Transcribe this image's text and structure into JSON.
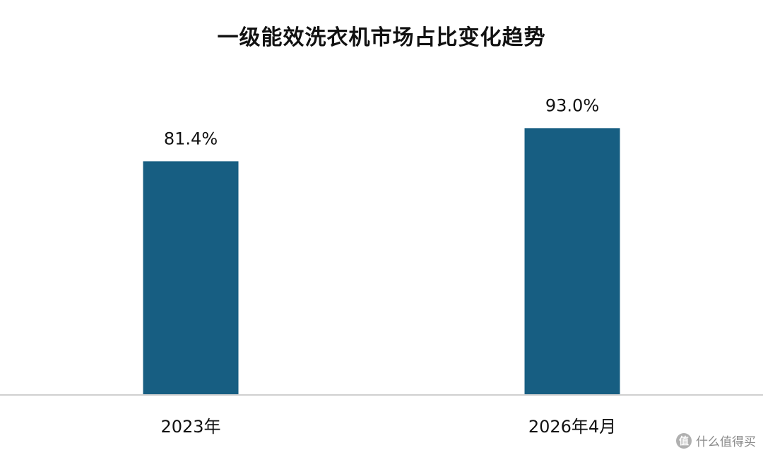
{
  "chart_data": {
    "type": "bar",
    "title": "一级能效洗衣机市场占比变化趋势",
    "categories": [
      "2023年",
      "2026年4月"
    ],
    "values": [
      81.4,
      93.0
    ],
    "value_labels": [
      "81.4%",
      "93.0%"
    ],
    "xlabel": "",
    "ylabel": "",
    "ylim": [
      0,
      100
    ],
    "grid": false,
    "legend": "none",
    "bar_color": "#175E82",
    "axis_color": "#D0D0D0"
  },
  "watermark": {
    "icon_text": "值",
    "text": "什么值得买"
  }
}
